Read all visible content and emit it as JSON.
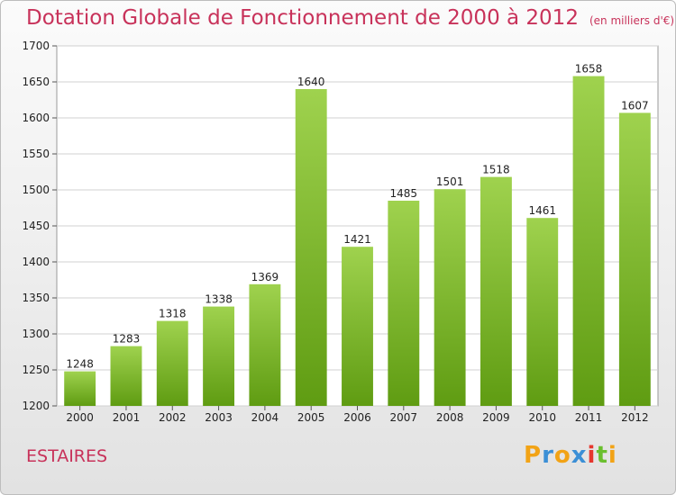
{
  "header": {
    "title": "Dotation Globale de Fonctionnement de 2000 à 2012",
    "unit": "(en milliers d'€)"
  },
  "footer": {
    "commune": "ESTAIRES",
    "brand": {
      "letters": [
        "P",
        "r",
        "o",
        "x",
        "i",
        "t",
        "i"
      ],
      "colors": [
        "#f2a316",
        "#3b8fd6",
        "#f2a316",
        "#3b8fd6",
        "#e6372e",
        "#6abf2e",
        "#f2a316"
      ]
    }
  },
  "chart_data": {
    "type": "bar",
    "title": "Dotation Globale de Fonctionnement de 2000 à 2012",
    "subtitle": "(en milliers d'€)",
    "categories": [
      "2000",
      "2001",
      "2002",
      "2003",
      "2004",
      "2005",
      "2006",
      "2007",
      "2008",
      "2009",
      "2010",
      "2011",
      "2012"
    ],
    "values": [
      1248,
      1283,
      1318,
      1338,
      1369,
      1640,
      1421,
      1485,
      1501,
      1518,
      1461,
      1658,
      1607
    ],
    "ylim": [
      1200,
      1700
    ],
    "yticks": [
      1200,
      1250,
      1300,
      1350,
      1400,
      1450,
      1500,
      1550,
      1600,
      1650,
      1700
    ],
    "grid": true,
    "bar_color_top": "#9fd24e",
    "bar_color_bottom": "#5f9c12"
  }
}
